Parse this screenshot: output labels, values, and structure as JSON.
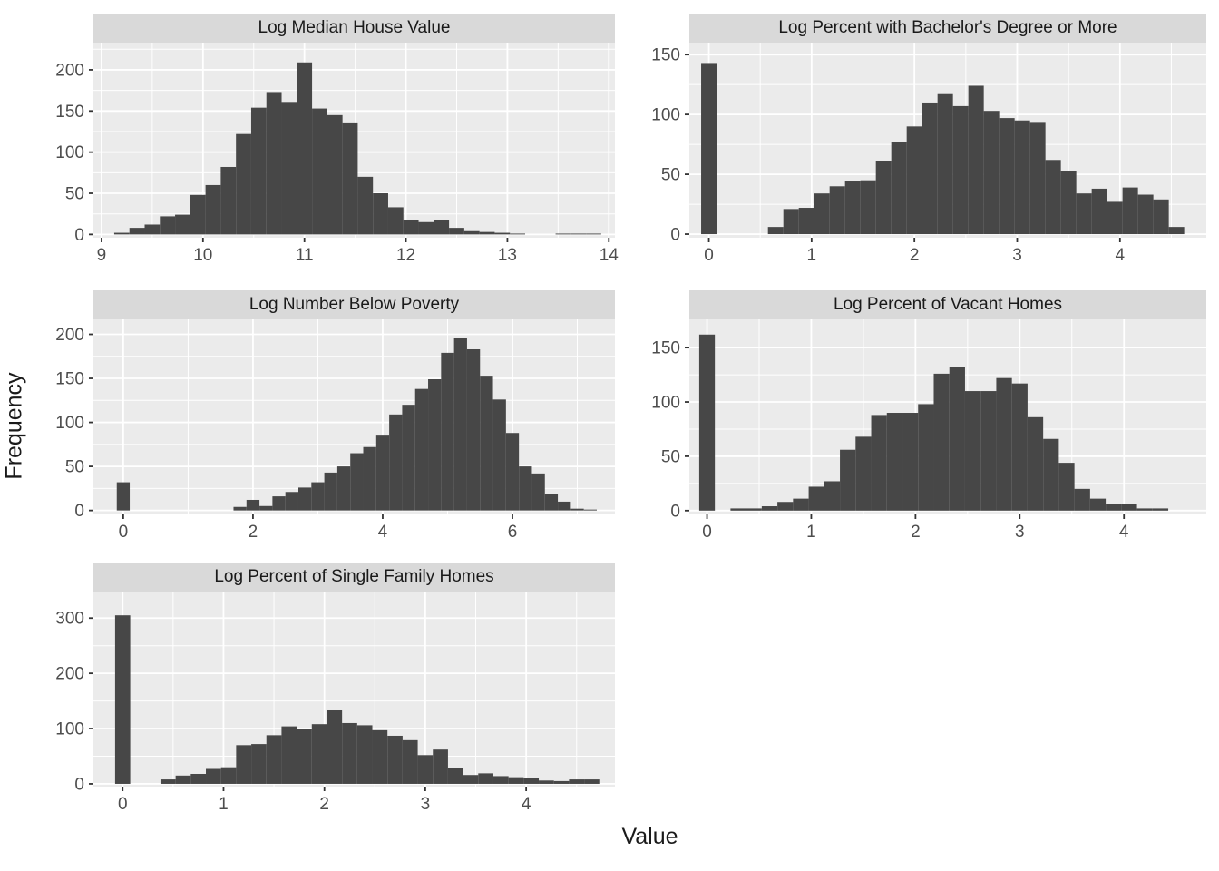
{
  "figure": {
    "x_axis_title": "Value",
    "y_axis_title": "Frequency"
  },
  "style": {
    "bar_fill": "#474747",
    "panel_bg": "#EBEBEB",
    "strip_bg": "#D9D9D9",
    "grid_color": "#FFFFFF",
    "tick_mark_color": "#333333",
    "tick_label_color": "#4D4D4D",
    "title_color": "#1A1A1A",
    "background": "#FFFFFF"
  },
  "chart_data": [
    {
      "type": "bar",
      "subtype": "histogram",
      "title": "Log Median House Value",
      "legend": "none",
      "grid": "on",
      "bin_width": 0.15,
      "x_range": [
        8.92,
        14.06
      ],
      "y_range": [
        -4,
        233
      ],
      "x_ticks": [
        9,
        10,
        11,
        12,
        13,
        14
      ],
      "x_minor": [
        9.5,
        10.5,
        11.5,
        12.5,
        13.5
      ],
      "y_ticks": [
        0,
        50,
        100,
        150,
        200
      ],
      "y_minor": [
        25,
        75,
        125,
        175,
        225
      ],
      "bin_centers": [
        9.2,
        9.35,
        9.5,
        9.65,
        9.8,
        9.95,
        10.1,
        10.25,
        10.4,
        10.55,
        10.7,
        10.85,
        11.0,
        11.15,
        11.3,
        11.45,
        11.6,
        11.75,
        11.9,
        12.05,
        12.2,
        12.35,
        12.5,
        12.65,
        12.8,
        12.95,
        13.1,
        13.25,
        13.4,
        13.55,
        13.7,
        13.85
      ],
      "counts": [
        2,
        8,
        12,
        22,
        24,
        48,
        60,
        82,
        122,
        154,
        173,
        161,
        209,
        153,
        145,
        135,
        70,
        50,
        33,
        18,
        15,
        17,
        8,
        4,
        3,
        2,
        1,
        0,
        0,
        1,
        1,
        1
      ]
    },
    {
      "type": "bar",
      "subtype": "histogram",
      "title": "Log Percent with Bachelor's Degree or More",
      "legend": "none",
      "grid": "on",
      "bin_width": 0.15,
      "x_range": [
        -0.19,
        4.84
      ],
      "y_range": [
        -3,
        160
      ],
      "x_ticks": [
        0,
        1,
        2,
        3,
        4
      ],
      "x_minor": [
        0.5,
        1.5,
        2.5,
        3.5,
        4.5
      ],
      "y_ticks": [
        0,
        50,
        100,
        150
      ],
      "y_minor": [
        25,
        75,
        125
      ],
      "bin_centers": [
        0,
        0.65,
        0.8,
        0.95,
        1.1,
        1.25,
        1.4,
        1.55,
        1.7,
        1.85,
        2.0,
        2.15,
        2.3,
        2.45,
        2.6,
        2.75,
        2.9,
        3.05,
        3.2,
        3.35,
        3.5,
        3.65,
        3.8,
        3.95,
        4.1,
        4.25,
        4.4,
        4.55
      ],
      "counts": [
        143,
        6,
        21,
        22,
        34,
        40,
        44,
        45,
        61,
        77,
        90,
        110,
        117,
        107,
        124,
        103,
        97,
        95,
        93,
        62,
        53,
        34,
        38,
        27,
        39,
        33,
        29,
        6
      ]
    },
    {
      "type": "bar",
      "subtype": "histogram",
      "title": "Log Number Below Poverty",
      "legend": "none",
      "grid": "on",
      "bin_width": 0.2,
      "x_range": [
        -0.46,
        7.58
      ],
      "y_range": [
        -4.5,
        217
      ],
      "x_ticks": [
        0,
        2,
        4,
        6
      ],
      "x_minor": [
        1,
        3,
        5,
        7
      ],
      "y_ticks": [
        0,
        50,
        100,
        150,
        200
      ],
      "y_minor": [
        25,
        75,
        125,
        175
      ],
      "bin_centers": [
        0,
        1.8,
        2.0,
        2.2,
        2.4,
        2.6,
        2.8,
        3.0,
        3.2,
        3.4,
        3.6,
        3.8,
        4.0,
        4.2,
        4.4,
        4.6,
        4.8,
        5.0,
        5.2,
        5.4,
        5.6,
        5.8,
        6.0,
        6.2,
        6.4,
        6.6,
        6.8,
        7.0,
        7.2
      ],
      "counts": [
        32,
        4,
        12,
        5,
        16,
        21,
        26,
        32,
        43,
        50,
        65,
        72,
        85,
        109,
        120,
        138,
        149,
        179,
        196,
        183,
        153,
        126,
        88,
        50,
        42,
        19,
        10,
        2,
        1
      ]
    },
    {
      "type": "bar",
      "subtype": "histogram",
      "title": "Log Percent of Vacant Homes",
      "legend": "none",
      "grid": "on",
      "bin_width": 0.15,
      "x_range": [
        -0.17,
        4.79
      ],
      "y_range": [
        -3.5,
        176
      ],
      "x_ticks": [
        0,
        1,
        2,
        3,
        4
      ],
      "x_minor": [
        0.5,
        1.5,
        2.5,
        3.5
      ],
      "y_ticks": [
        0,
        50,
        100,
        150
      ],
      "y_minor": [
        25,
        75,
        125
      ],
      "bin_centers": [
        0,
        0.3,
        0.45,
        0.6,
        0.75,
        0.9,
        1.05,
        1.2,
        1.35,
        1.5,
        1.65,
        1.8,
        1.95,
        2.1,
        2.25,
        2.4,
        2.55,
        2.7,
        2.85,
        3.0,
        3.15,
        3.3,
        3.45,
        3.6,
        3.75,
        3.9,
        4.05,
        4.2,
        4.35
      ],
      "counts": [
        162,
        2,
        2,
        4,
        8,
        11,
        22,
        27,
        56,
        68,
        88,
        90,
        90,
        98,
        126,
        132,
        110,
        110,
        122,
        117,
        86,
        66,
        44,
        20,
        11,
        6,
        6,
        2,
        2
      ]
    },
    {
      "type": "bar",
      "subtype": "histogram",
      "title": "Log Percent of Single Family Homes",
      "legend": "none",
      "grid": "on",
      "bin_width": 0.15,
      "x_range": [
        -0.29,
        4.88
      ],
      "y_range": [
        -5,
        348
      ],
      "x_ticks": [
        0,
        1,
        2,
        3,
        4
      ],
      "x_minor": [
        0.5,
        1.5,
        2.5,
        3.5,
        4.5
      ],
      "y_ticks": [
        0,
        100,
        200,
        300
      ],
      "y_minor": [
        50,
        150,
        250
      ],
      "bin_centers": [
        0,
        0.45,
        0.6,
        0.75,
        0.9,
        1.05,
        1.2,
        1.35,
        1.5,
        1.65,
        1.8,
        1.95,
        2.1,
        2.25,
        2.4,
        2.55,
        2.7,
        2.85,
        3.0,
        3.15,
        3.3,
        3.45,
        3.6,
        3.75,
        3.9,
        4.05,
        4.2,
        4.35,
        4.5,
        4.65
      ],
      "counts": [
        305,
        8,
        15,
        18,
        27,
        30,
        70,
        72,
        88,
        104,
        99,
        108,
        133,
        110,
        106,
        97,
        87,
        79,
        52,
        62,
        28,
        16,
        19,
        14,
        12,
        10,
        6,
        5,
        8,
        8
      ]
    }
  ]
}
